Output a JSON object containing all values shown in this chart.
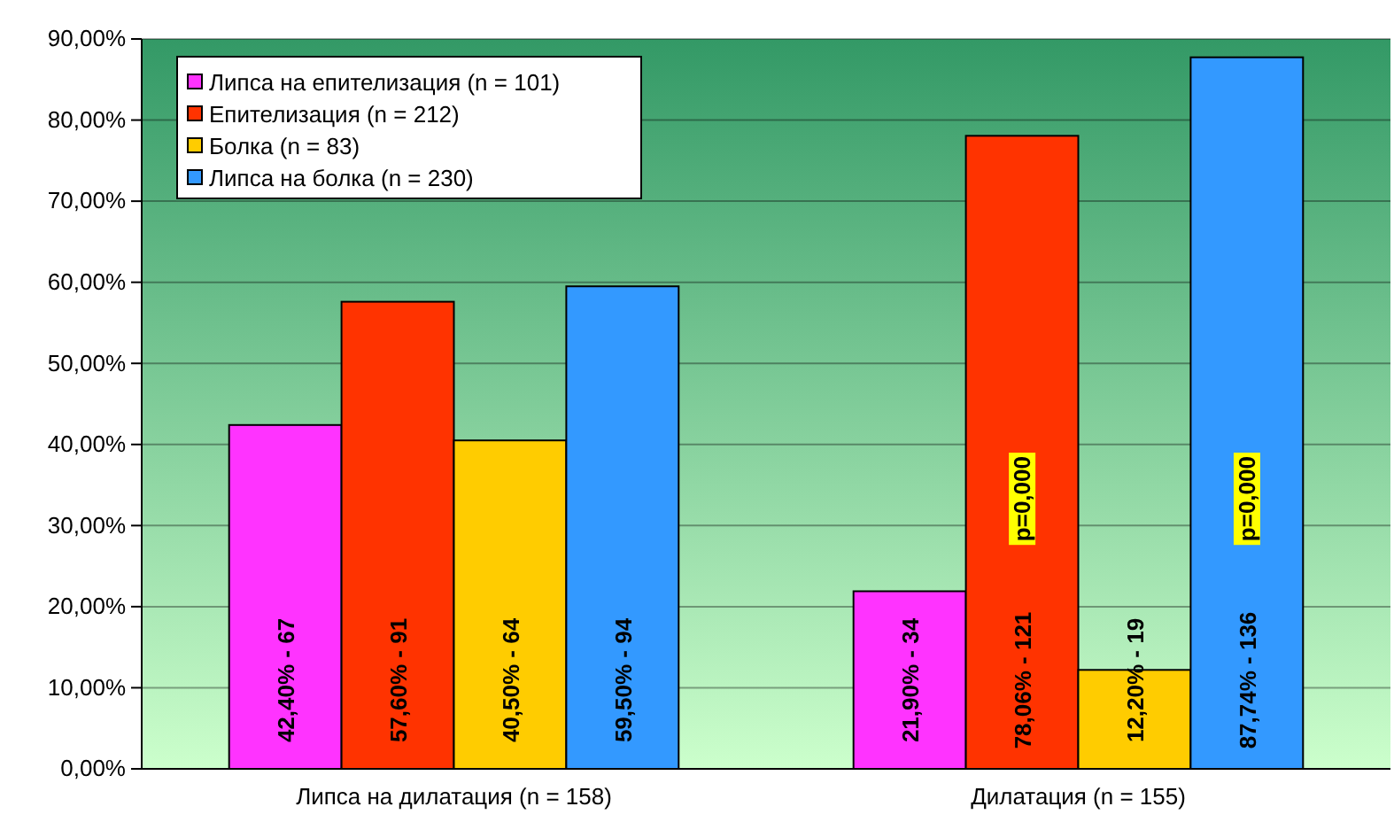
{
  "chart_data": {
    "type": "bar",
    "categories": [
      "Липса на дилатация (n = 158)",
      "Дилатация (n = 155)"
    ],
    "series": [
      {
        "name": "Липса на епителизация  (n = 101)",
        "color": "#ff33ff",
        "values": [
          42.4,
          21.9
        ],
        "value_labels": [
          "42,40% - 67",
          "21,90% - 34"
        ]
      },
      {
        "name": "Епителизация  (n = 212)",
        "color": "#ff3300",
        "values": [
          57.6,
          78.06
        ],
        "value_labels": [
          "57,60% - 91",
          "78,06% - 121"
        ]
      },
      {
        "name": "Болка  (n = 83)",
        "color": "#ffcc00",
        "values": [
          40.5,
          12.2
        ],
        "value_labels": [
          "40,50% - 64",
          "12,20% - 19"
        ]
      },
      {
        "name": "Липса на болка (n = 230)",
        "color": "#3399ff",
        "values": [
          59.5,
          87.74
        ],
        "value_labels": [
          "59,50% - 94",
          "87,74% - 136"
        ]
      }
    ],
    "annotations": [
      "p=0,000",
      "p=0,000"
    ],
    "ylim": [
      0,
      90
    ],
    "yticks": [
      {
        "value": 0,
        "label": "0,00%"
      },
      {
        "value": 10,
        "label": "10,00%"
      },
      {
        "value": 20,
        "label": "20,00%"
      },
      {
        "value": 30,
        "label": "30,00%"
      },
      {
        "value": 40,
        "label": "40,00%"
      },
      {
        "value": 50,
        "label": "50,00%"
      },
      {
        "value": 60,
        "label": "60,00%"
      },
      {
        "value": 70,
        "label": "70,00%"
      },
      {
        "value": 80,
        "label": "80,00%"
      },
      {
        "value": 90,
        "label": "90,00%"
      }
    ],
    "grid": "y",
    "legend": "top left"
  }
}
